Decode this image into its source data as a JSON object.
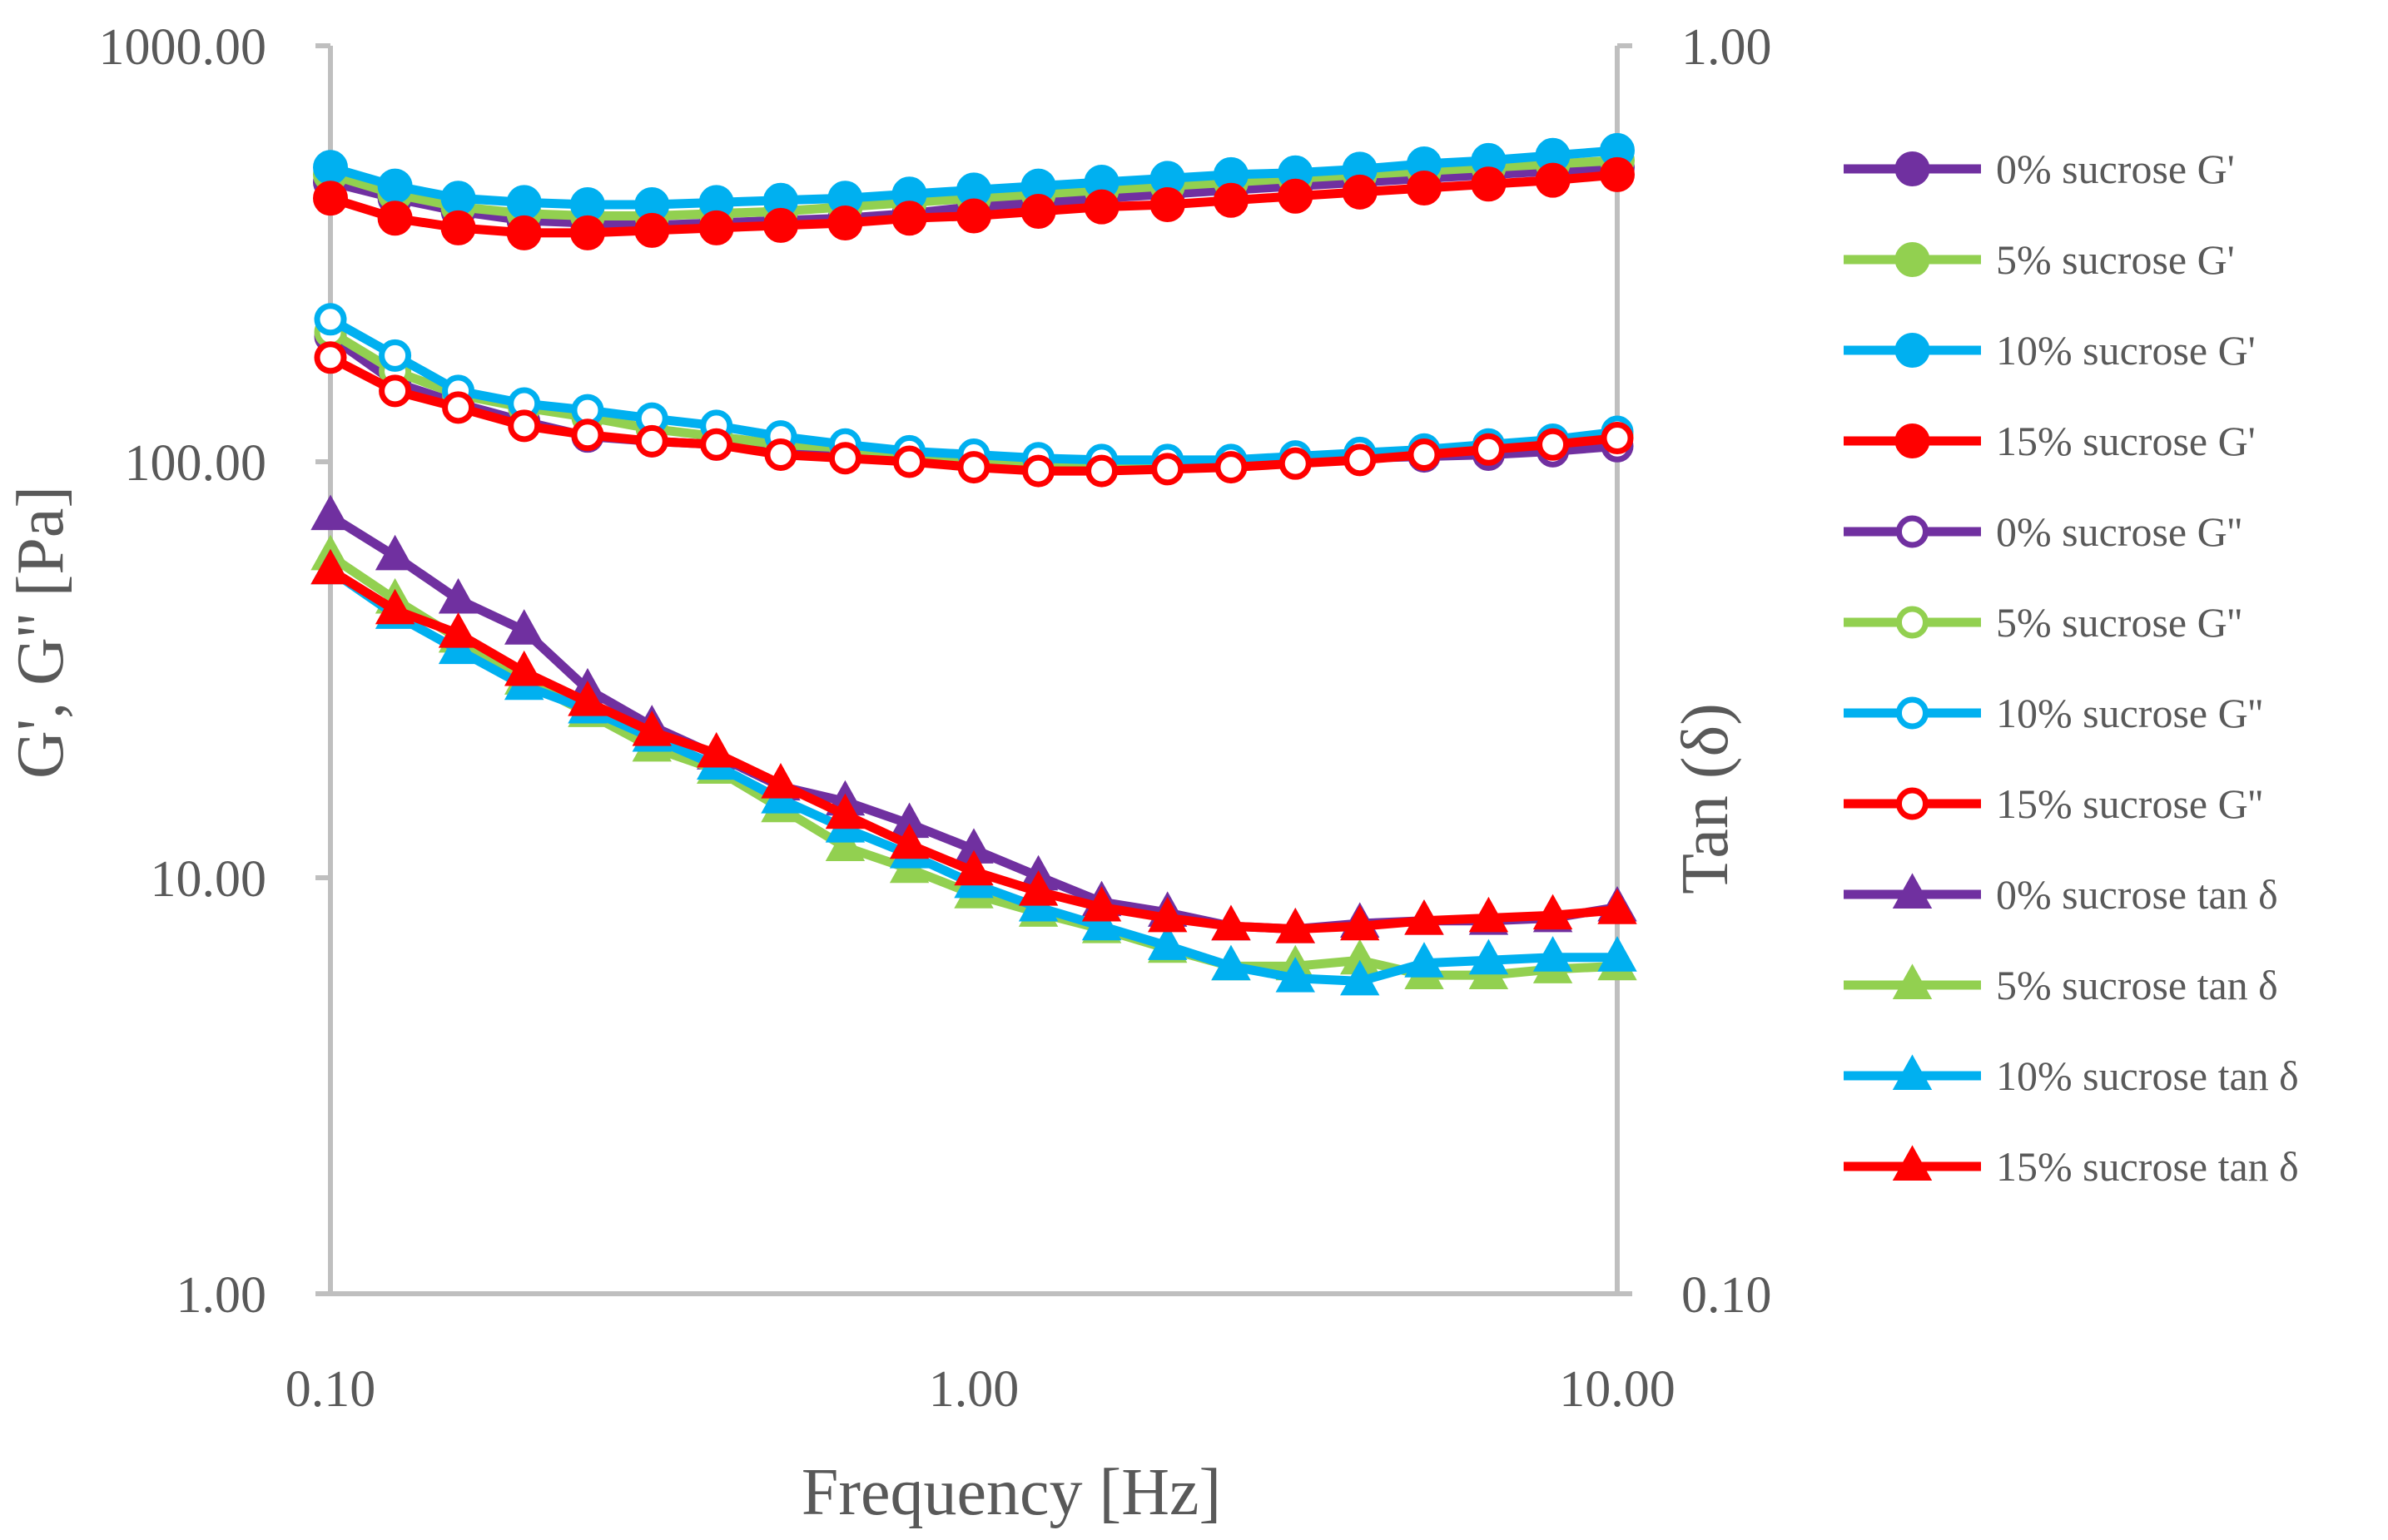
{
  "chart_data": {
    "type": "line",
    "xlabel": "Frequency [Hz]",
    "ylabel": "G', G'' [Pa]",
    "y2label": "Tan (δ)",
    "x_scale": "log",
    "y_scale": "log",
    "y2_scale": "log",
    "xlim": [
      0.1,
      10
    ],
    "ylim": [
      1,
      1000
    ],
    "y2lim": [
      0.1,
      1
    ],
    "x_ticks": [
      "0.10",
      "1.00",
      "10.00"
    ],
    "y_ticks": [
      "1000.00",
      "100.00",
      "10.00",
      "1.00"
    ],
    "y2_ticks": [
      "1.00",
      "0.10"
    ],
    "grid": false,
    "legend_position": "right",
    "x": [
      0.1,
      0.126,
      0.158,
      0.2,
      0.251,
      0.316,
      0.398,
      0.501,
      0.631,
      0.794,
      1.0,
      1.26,
      1.58,
      2.0,
      2.51,
      3.16,
      3.98,
      5.01,
      6.31,
      7.94,
      10.0
    ],
    "series": [
      {
        "name": "0% sucrose G'",
        "axis": "left",
        "color": "#7030A0",
        "marker": "circle",
        "filled": true,
        "values": [
          470,
          430,
          400,
          380,
          375,
          370,
          375,
          380,
          385,
          395,
          410,
          420,
          430,
          440,
          450,
          460,
          470,
          480,
          490,
          500,
          510
        ]
      },
      {
        "name": "5% sucrose G'",
        "axis": "left",
        "color": "#92D050",
        "marker": "circle",
        "filled": true,
        "values": [
          490,
          440,
          410,
          395,
          390,
          390,
          395,
          400,
          410,
          420,
          430,
          440,
          450,
          460,
          470,
          480,
          490,
          500,
          510,
          520,
          530
        ]
      },
      {
        "name": "10% sucrose G'",
        "axis": "left",
        "color": "#00B0F0",
        "marker": "circle",
        "filled": true,
        "values": [
          510,
          460,
          430,
          420,
          415,
          415,
          420,
          425,
          430,
          440,
          450,
          460,
          470,
          480,
          490,
          495,
          505,
          520,
          530,
          545,
          560
        ]
      },
      {
        "name": "15% sucrose G'",
        "axis": "left",
        "color": "#FF0000",
        "marker": "circle",
        "filled": true,
        "values": [
          430,
          385,
          365,
          355,
          355,
          360,
          365,
          370,
          375,
          385,
          390,
          400,
          410,
          415,
          425,
          435,
          445,
          455,
          465,
          475,
          490
        ]
      },
      {
        "name": "0% sucrose G''",
        "axis": "left",
        "color": "#7030A0",
        "marker": "circle",
        "filled": false,
        "values": [
          200,
          155,
          138,
          125,
          115,
          112,
          110,
          105,
          103,
          101,
          98,
          96,
          96,
          97,
          98,
          100,
          102,
          103,
          104,
          106,
          109
        ]
      },
      {
        "name": "5% sucrose G''",
        "axis": "left",
        "color": "#92D050",
        "marker": "circle",
        "filled": false,
        "values": [
          205,
          165,
          145,
          135,
          128,
          120,
          115,
          110,
          108,
          103,
          100,
          98,
          97,
          98,
          99,
          101,
          103,
          105,
          108,
          112,
          116
        ]
      },
      {
        "name": "10% sucrose G''",
        "axis": "left",
        "color": "#00B0F0",
        "marker": "circle",
        "filled": false,
        "values": [
          220,
          180,
          148,
          138,
          133,
          127,
          122,
          115,
          110,
          106,
          104,
          102,
          101,
          101,
          101,
          103,
          105,
          107,
          110,
          113,
          118
        ]
      },
      {
        "name": "15% sucrose G''",
        "axis": "left",
        "color": "#FF0000",
        "marker": "circle",
        "filled": false,
        "values": [
          178,
          148,
          135,
          122,
          116,
          112,
          110,
          104,
          102,
          100,
          97,
          95,
          95,
          96,
          97,
          99,
          101,
          104,
          107,
          110,
          114
        ]
      },
      {
        "name": "0% sucrose tan δ",
        "axis": "right",
        "color": "#7030A0",
        "marker": "triangle",
        "filled": true,
        "values": [
          0.42,
          0.39,
          0.36,
          0.34,
          0.305,
          0.285,
          0.27,
          0.255,
          0.248,
          0.238,
          0.227,
          0.216,
          0.206,
          0.202,
          0.197,
          0.196,
          0.198,
          0.199,
          0.199,
          0.2,
          0.204
        ]
      },
      {
        "name": "5% sucrose tan δ",
        "axis": "right",
        "color": "#92D050",
        "marker": "triangle",
        "filled": true,
        "values": [
          0.39,
          0.36,
          0.335,
          0.31,
          0.292,
          0.274,
          0.263,
          0.245,
          0.228,
          0.219,
          0.209,
          0.202,
          0.196,
          0.189,
          0.183,
          0.183,
          0.185,
          0.18,
          0.18,
          0.182,
          0.183
        ]
      },
      {
        "name": "10% sucrose tan δ",
        "axis": "right",
        "color": "#00B0F0",
        "marker": "triangle",
        "filled": true,
        "values": [
          0.38,
          0.35,
          0.328,
          0.307,
          0.294,
          0.279,
          0.265,
          0.249,
          0.236,
          0.225,
          0.213,
          0.204,
          0.197,
          0.19,
          0.183,
          0.179,
          0.178,
          0.184,
          0.185,
          0.186,
          0.186
        ]
      },
      {
        "name": "15% sucrose tan δ",
        "axis": "right",
        "color": "#FF0000",
        "marker": "triangle",
        "filled": true,
        "values": [
          0.38,
          0.353,
          0.338,
          0.315,
          0.298,
          0.282,
          0.271,
          0.256,
          0.242,
          0.229,
          0.218,
          0.21,
          0.204,
          0.2,
          0.197,
          0.196,
          0.197,
          0.199,
          0.2,
          0.201,
          0.203
        ]
      }
    ]
  }
}
